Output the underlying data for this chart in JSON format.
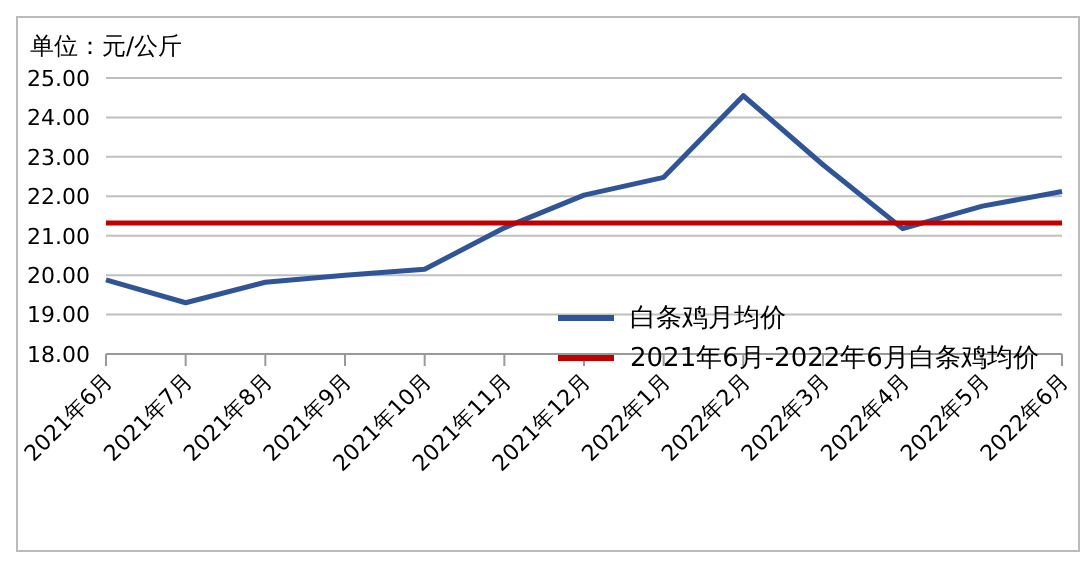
{
  "chart_data": {
    "type": "line",
    "ylabel": "单位：元/公斤",
    "categories": [
      "2021年6月",
      "2021年7月",
      "2021年8月",
      "2021年9月",
      "2021年10月",
      "2021年11月",
      "2021年12月",
      "2022年1月",
      "2022年2月",
      "2022年3月",
      "2022年4月",
      "2022年5月",
      "2022年6月"
    ],
    "series": [
      {
        "name": "白条鸡月均价",
        "color": "#2f5597",
        "values": [
          19.88,
          19.3,
          19.82,
          20.0,
          20.15,
          21.2,
          22.03,
          22.48,
          24.55,
          22.8,
          21.18,
          21.75,
          22.12
        ]
      },
      {
        "name": "2021年6月-2022年6月白条鸡均价",
        "color": "#c00000",
        "values": [
          21.32,
          21.32,
          21.32,
          21.32,
          21.32,
          21.32,
          21.32,
          21.32,
          21.32,
          21.32,
          21.32,
          21.32,
          21.32
        ]
      }
    ],
    "ylim": [
      18,
      25
    ],
    "yticks": [
      {
        "value": 18,
        "label": "18.00"
      },
      {
        "value": 19,
        "label": "19.00"
      },
      {
        "value": 20,
        "label": "20.00"
      },
      {
        "value": 21,
        "label": "21.00"
      },
      {
        "value": 22,
        "label": "22.00"
      },
      {
        "value": 23,
        "label": "23.00"
      },
      {
        "value": 24,
        "label": "24.00"
      },
      {
        "value": 25,
        "label": "25.00"
      }
    ],
    "grid": "y",
    "legend": "bottom right",
    "marker": "none",
    "line_style": "solid"
  }
}
